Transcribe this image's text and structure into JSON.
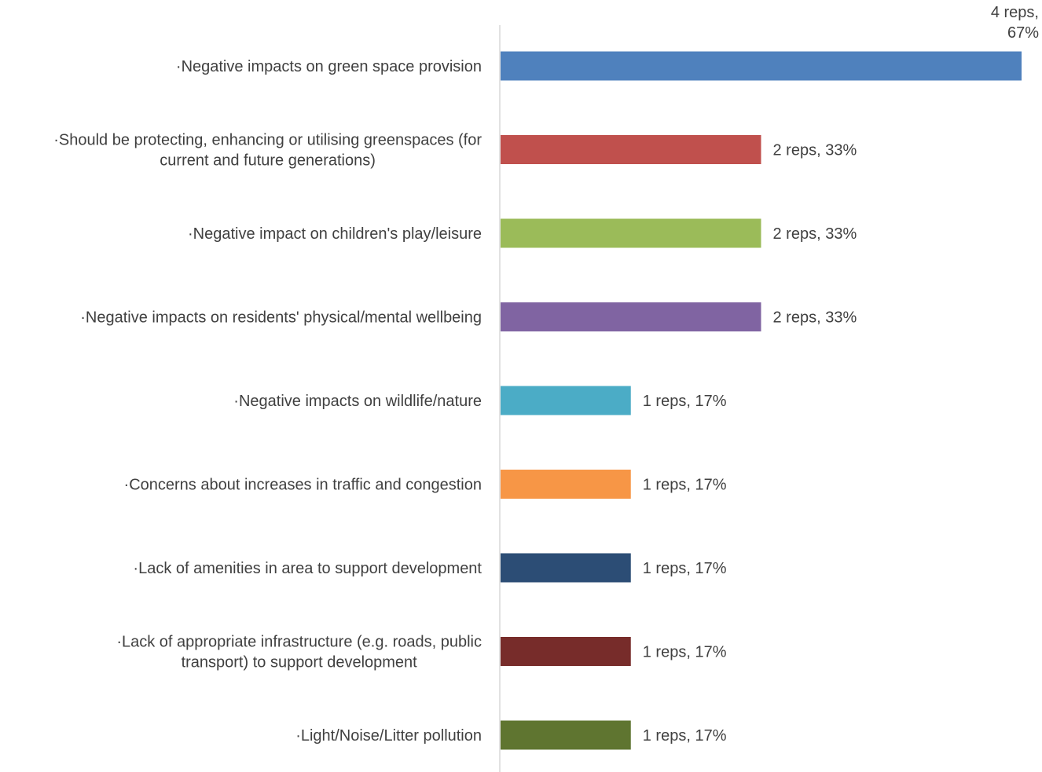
{
  "chart_data": {
    "type": "bar",
    "orientation": "horizontal",
    "title": "",
    "xlabel": "",
    "ylabel": "",
    "xlim": [
      0,
      4
    ],
    "grid": false,
    "legend": "none",
    "categories": [
      [
        "·Negative impacts on green space provision"
      ],
      [
        "·Should be protecting, enhancing or utilising greenspaces (for",
        "current and future generations)"
      ],
      [
        "·Negative impact on children's play/leisure"
      ],
      [
        "·Negative impacts on residents' physical/mental wellbeing"
      ],
      [
        "·Negative impacts on wildlife/nature"
      ],
      [
        "·Concerns about increases in traffic and congestion"
      ],
      [
        "·Lack of amenities in area to support development"
      ],
      [
        "·Lack of appropriate infrastructure (e.g. roads, public",
        "transport) to support development"
      ],
      [
        "·Light/Noise/Litter pollution"
      ]
    ],
    "values": [
      4,
      2,
      2,
      2,
      1,
      1,
      1,
      1,
      1
    ],
    "percentages": [
      67,
      33,
      33,
      33,
      17,
      17,
      17,
      17,
      17
    ],
    "data_labels": [
      [
        "4 reps,",
        "67%"
      ],
      [
        "2 reps, 33%"
      ],
      [
        "2 reps, 33%"
      ],
      [
        "2 reps, 33%"
      ],
      [
        "1 reps, 17%"
      ],
      [
        "1 reps, 17%"
      ],
      [
        "1 reps, 17%"
      ],
      [
        "1 reps, 17%"
      ],
      [
        "1 reps, 17%"
      ]
    ],
    "colors": [
      "#4f81bd",
      "#c0504d",
      "#9bbb59",
      "#8064a2",
      "#4bacc6",
      "#f79646",
      "#2c4d75",
      "#772c2a",
      "#5f7530"
    ],
    "axis_color": "#d9d9d9"
  }
}
